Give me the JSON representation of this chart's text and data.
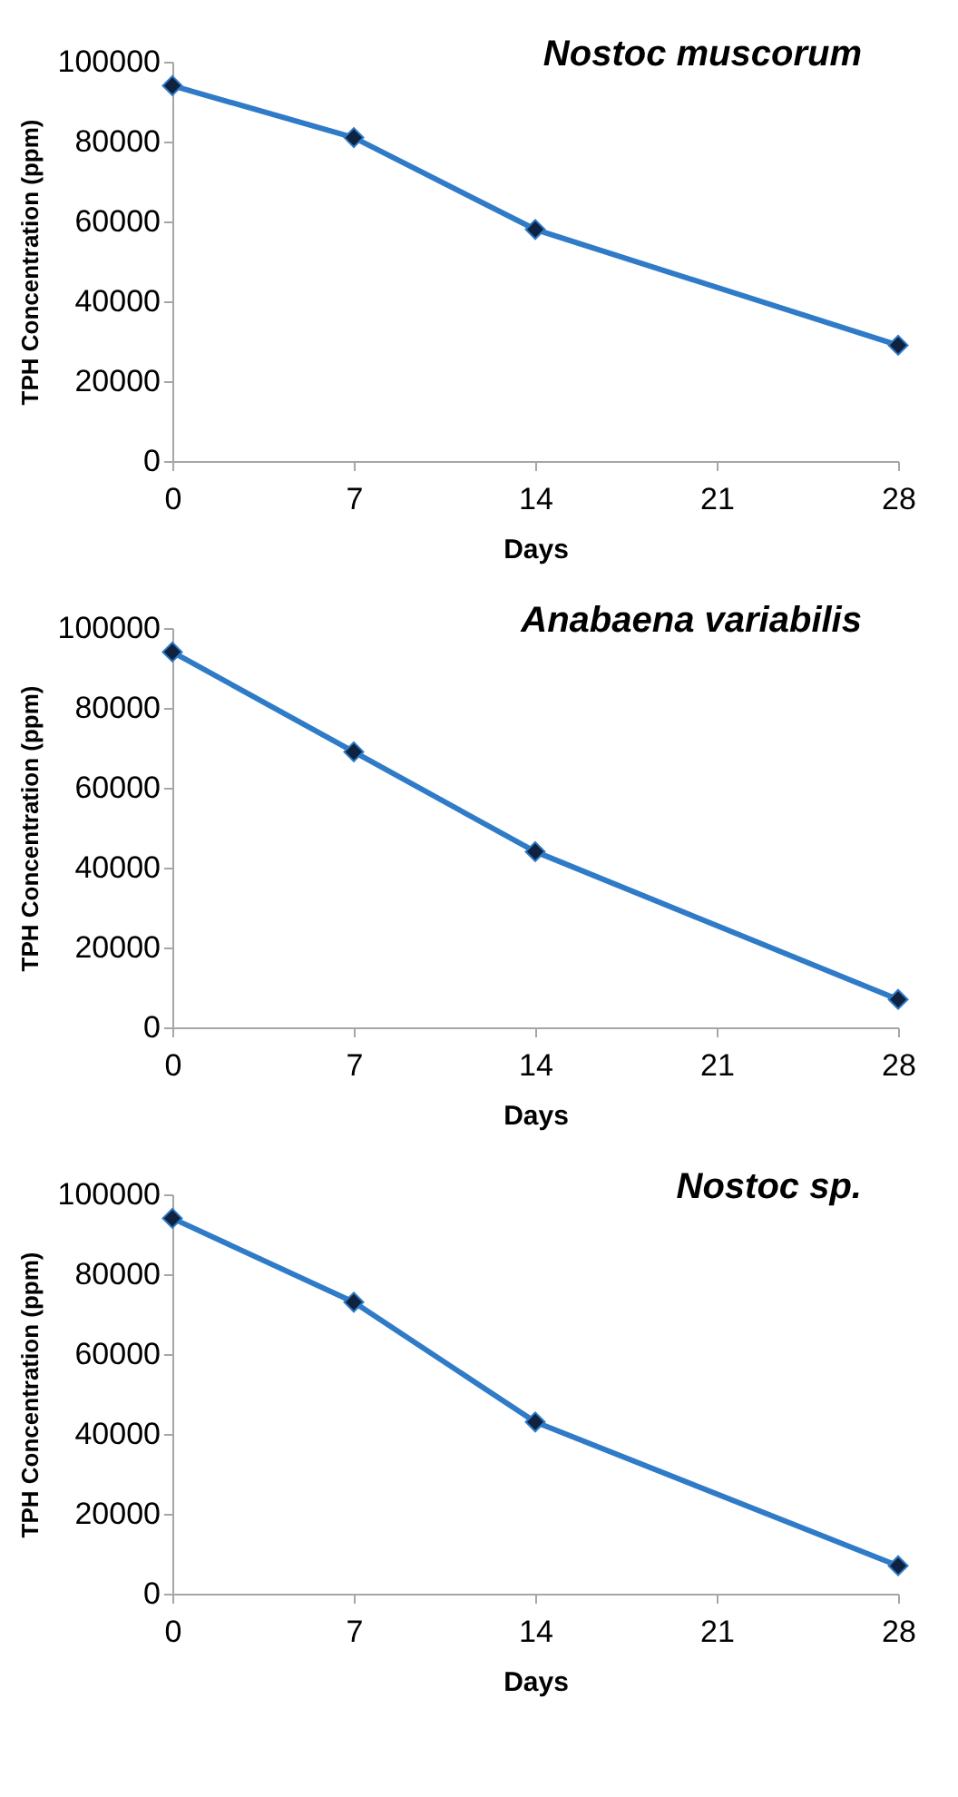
{
  "chart_data": [
    {
      "type": "line",
      "title": "Nostoc muscorum",
      "xlabel": "Days",
      "ylabel": "TPH Concentration (ppm)",
      "x": [
        0,
        7,
        14,
        28
      ],
      "series": [
        {
          "color": "#2f7bc8",
          "values": [
            94000,
            81000,
            58000,
            29000
          ]
        }
      ],
      "xlim": [
        0,
        28
      ],
      "xticks": [
        0,
        7,
        14,
        21,
        28
      ],
      "ylim": [
        0,
        100000
      ],
      "yticks": [
        0,
        20000,
        40000,
        60000,
        80000,
        100000
      ],
      "grid": false,
      "marker": "diamond"
    },
    {
      "type": "line",
      "title": "Anabaena variabilis",
      "xlabel": "Days",
      "ylabel": "TPH Concentration (ppm)",
      "x": [
        0,
        7,
        14,
        28
      ],
      "series": [
        {
          "color": "#2f7bc8",
          "values": [
            94000,
            69000,
            44000,
            7000
          ]
        }
      ],
      "xlim": [
        0,
        28
      ],
      "xticks": [
        0,
        7,
        14,
        21,
        28
      ],
      "ylim": [
        0,
        100000
      ],
      "yticks": [
        0,
        20000,
        40000,
        60000,
        80000,
        100000
      ],
      "grid": false,
      "marker": "diamond"
    },
    {
      "type": "line",
      "title": "Nostoc sp.",
      "xlabel": "Days",
      "ylabel": "TPH Concentration (ppm)",
      "x": [
        0,
        7,
        14,
        28
      ],
      "series": [
        {
          "color": "#2f7bc8",
          "values": [
            94000,
            73000,
            43000,
            7000
          ]
        }
      ],
      "xlim": [
        0,
        28
      ],
      "xticks": [
        0,
        7,
        14,
        21,
        28
      ],
      "ylim": [
        0,
        100000
      ],
      "yticks": [
        0,
        20000,
        40000,
        60000,
        80000,
        100000
      ],
      "grid": false,
      "marker": "diamond"
    }
  ]
}
